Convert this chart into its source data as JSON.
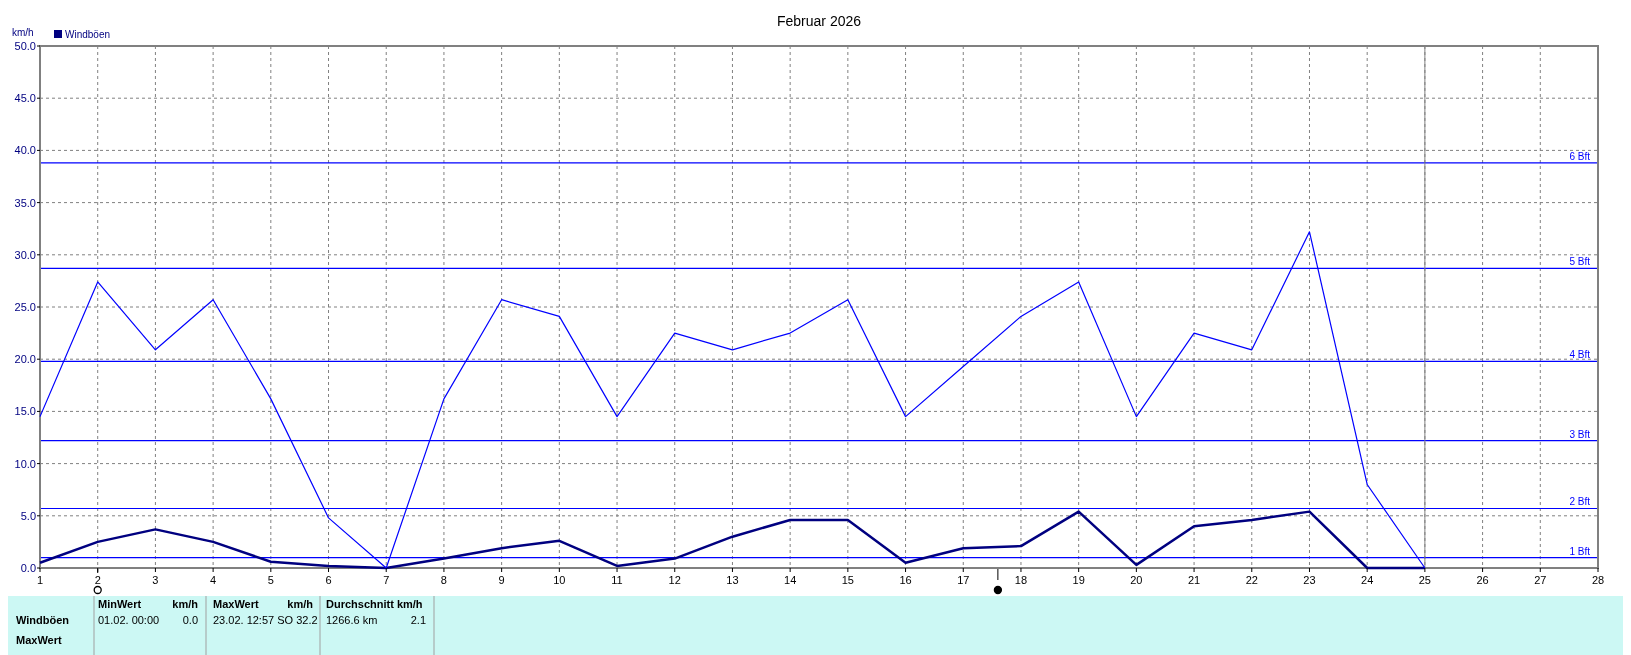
{
  "chart_data": {
    "type": "line",
    "title": "Februar 2026",
    "ylabel": "km/h",
    "x": [
      1,
      2,
      3,
      4,
      5,
      6,
      7,
      8,
      9,
      10,
      11,
      12,
      13,
      14,
      15,
      16,
      17,
      18,
      19,
      20,
      21,
      22,
      23,
      24,
      25
    ],
    "series": [
      {
        "name": "Windböen",
        "color": "#000080",
        "values": [
          0.5,
          2.5,
          3.7,
          2.5,
          0.6,
          0.2,
          0,
          0.9,
          1.9,
          2.6,
          0.2,
          0.9,
          3.0,
          4.6,
          4.6,
          0.5,
          1.9,
          2.1,
          5.4,
          0.3,
          4.0,
          4.6,
          5.4,
          0,
          0
        ]
      },
      {
        "color": "#0000ff",
        "values": [
          14.5,
          27.4,
          20.9,
          25.7,
          16.2,
          4.8,
          0,
          16.2,
          25.7,
          24.1,
          14.5,
          22.5,
          20.9,
          22.5,
          25.7,
          14.5,
          19.3,
          24.1,
          27.4,
          14.5,
          22.5,
          20.9,
          32.2,
          8.0,
          0
        ]
      }
    ],
    "xlim": [
      1,
      28
    ],
    "xticks": [
      1,
      2,
      3,
      4,
      5,
      6,
      7,
      8,
      9,
      10,
      11,
      12,
      13,
      14,
      15,
      16,
      17,
      18,
      19,
      20,
      21,
      22,
      23,
      24,
      25,
      26,
      27,
      28
    ],
    "ylim": [
      0,
      50
    ],
    "yticks": [
      {
        "value": 0,
        "label": "0.0"
      },
      {
        "value": 5,
        "label": "5.0"
      },
      {
        "value": 10,
        "label": "10.0"
      },
      {
        "value": 15,
        "label": "15.0"
      },
      {
        "value": 20,
        "label": "20.0"
      },
      {
        "value": 25,
        "label": "25.0"
      },
      {
        "value": 30,
        "label": "30.0"
      },
      {
        "value": 35,
        "label": "35.0"
      },
      {
        "value": 40,
        "label": "40.0"
      },
      {
        "value": 45,
        "label": "45.0"
      },
      {
        "value": 50,
        "label": "50.0"
      }
    ],
    "ref_lines": [
      {
        "axis": "y",
        "value": 1.0,
        "label": "1 Bft",
        "color": "#0000ff"
      },
      {
        "axis": "y",
        "value": 5.7,
        "label": "2 Bft",
        "color": "#0000ff"
      },
      {
        "axis": "y",
        "value": 12.2,
        "label": "3 Bft",
        "color": "#0000ff"
      },
      {
        "axis": "y",
        "value": 19.8,
        "label": "4 Bft",
        "color": "#0000ff"
      },
      {
        "axis": "y",
        "value": 28.7,
        "label": "5 Bft",
        "color": "#0000ff"
      },
      {
        "axis": "y",
        "value": 38.8,
        "label": "6 Bft",
        "color": "#0000ff"
      },
      {
        "axis": "x",
        "value": 25,
        "label": null,
        "color": "#808080"
      }
    ],
    "annotations": [
      "Windböen",
      "MaxWert",
      "MinWert",
      "km/h",
      "01.02.  00:00",
      "0.0",
      "MaxWert",
      "km/h",
      "23.02.  12:57 SO 32.2",
      "Durchschnitt km/h",
      "1266.6 km",
      "2.1"
    ],
    "grid": true,
    "legend": "top left",
    "marker": "none",
    "line_style": "solid"
  }
}
